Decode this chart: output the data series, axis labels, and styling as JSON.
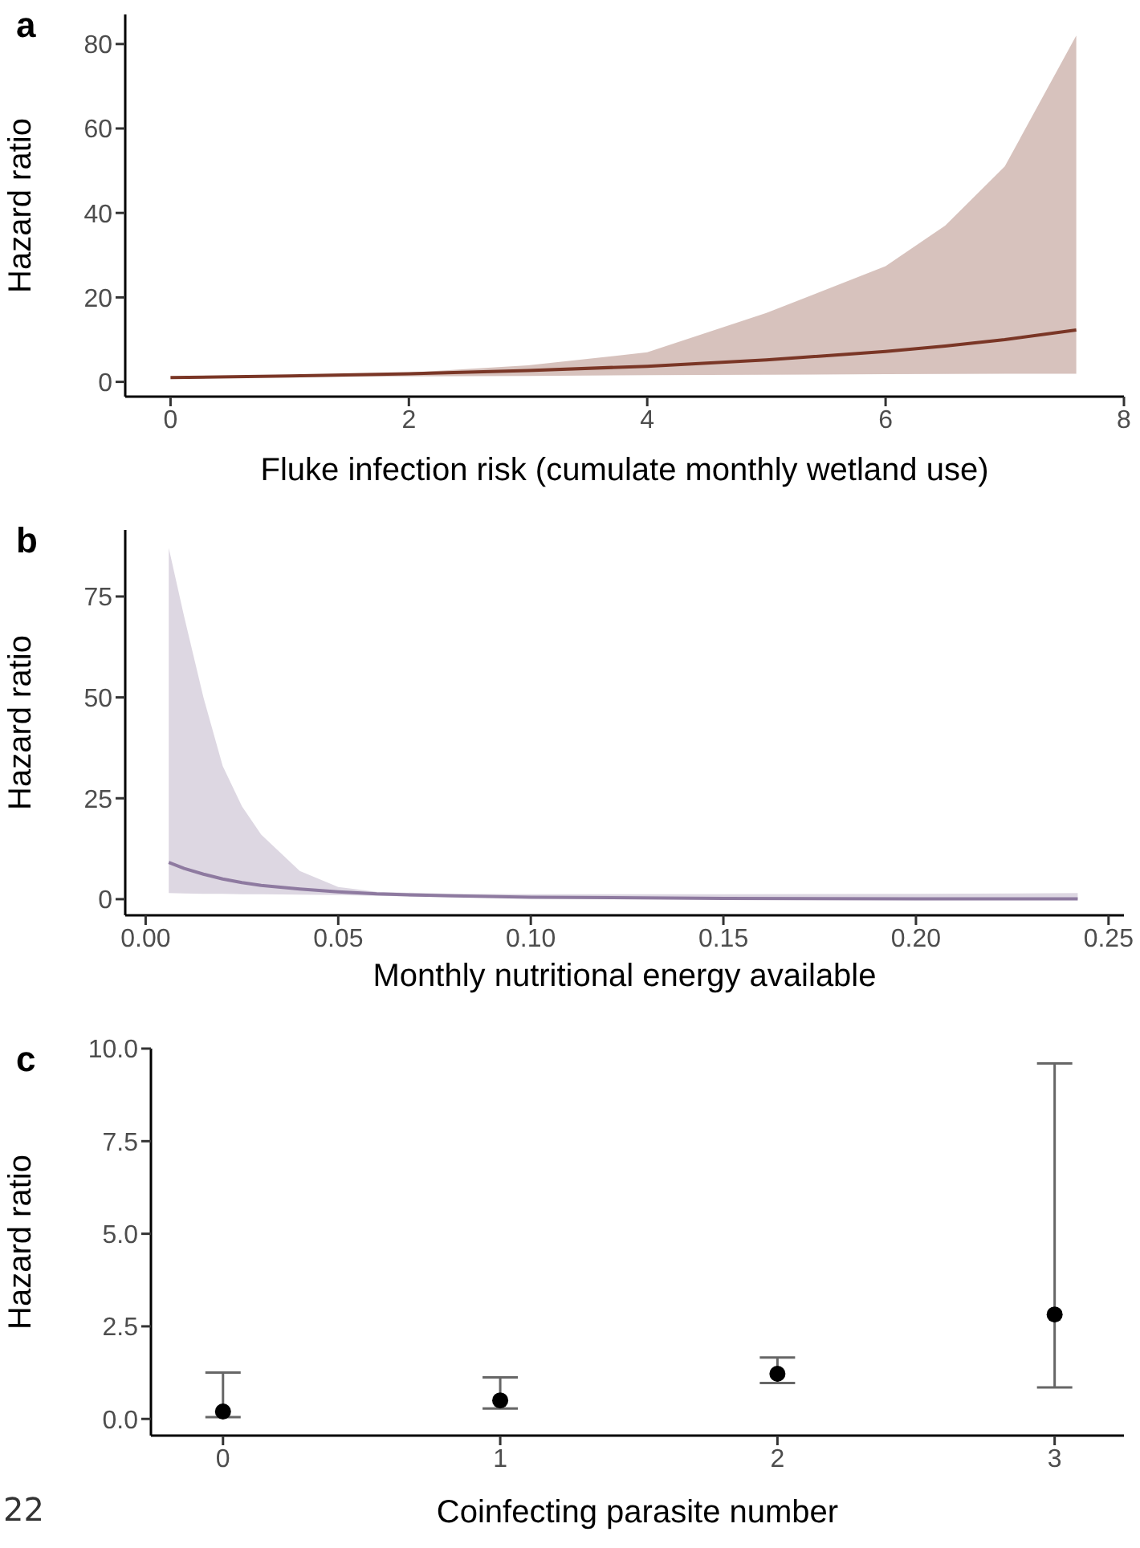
{
  "chart_data": [
    {
      "type": "line",
      "title": "a",
      "xlabel": "Fluke infection risk (cumulate monthly wetland use)",
      "ylabel": "Hazard ratio",
      "xlim": [
        -0.38,
        8
      ],
      "ylim": [
        -3.5,
        87
      ],
      "xticks": [
        0,
        2,
        4,
        6,
        8
      ],
      "yticks": [
        0,
        20,
        40,
        60,
        80
      ],
      "marker": "none",
      "series": [
        {
          "color": "#7a3626",
          "x": [
            0,
            1,
            2,
            3,
            4,
            5,
            6,
            6.5,
            7,
            7.6
          ],
          "values": [
            1,
            1.4,
            1.9,
            2.7,
            3.7,
            5.2,
            7.2,
            8.5,
            10,
            12.3
          ],
          "lower": [
            1,
            1.1,
            1.3,
            1.4,
            1.6,
            1.7,
            1.8,
            1.85,
            1.9,
            1.9
          ],
          "upper": [
            1.1,
            1.3,
            2.2,
            3.9,
            7,
            16.3,
            27.4,
            37,
            51,
            82
          ]
        }
      ]
    },
    {
      "type": "line",
      "title": "b",
      "xlabel": "Monthly nutritional energy available",
      "ylabel": "Hazard ratio",
      "xlim": [
        -0.0053,
        0.254
      ],
      "ylim": [
        -4,
        91.5
      ],
      "xticks": [
        {
          "value": 0,
          "label": "0.00"
        },
        {
          "value": 0.05,
          "label": "0.05"
        },
        {
          "value": 0.1,
          "label": "0.10"
        },
        {
          "value": 0.15,
          "label": "0.15"
        },
        {
          "value": 0.2,
          "label": "0.20"
        },
        {
          "value": 0.25,
          "label": "0.25"
        }
      ],
      "yticks": [
        0,
        25,
        50,
        75
      ],
      "marker": "none",
      "series": [
        {
          "color": "#8e7aa0",
          "x": [
            0.006,
            0.01,
            0.015,
            0.02,
            0.025,
            0.03,
            0.04,
            0.05,
            0.06,
            0.08,
            0.1,
            0.15,
            0.2,
            0.242
          ],
          "values": [
            9.1,
            7.6,
            6.2,
            5.0,
            4.1,
            3.4,
            2.5,
            1.8,
            1.3,
            0.8,
            0.5,
            0.2,
            0.1,
            0.1
          ],
          "lower": [
            1.5,
            1.4,
            1.3,
            1.3,
            1.2,
            1.2,
            1.1,
            1.0,
            0.8,
            0.5,
            0.3,
            0.1,
            0.05,
            0.0
          ],
          "upper": [
            87,
            70,
            50,
            33,
            23,
            16,
            7,
            3,
            1.8,
            1.3,
            1.2,
            1.2,
            1.3,
            1.5
          ]
        }
      ]
    },
    {
      "type": "scatter",
      "title": "c",
      "xlabel": "Coinfecting parasite number",
      "ylabel": "Hazard ratio",
      "categories": [
        "0",
        "1",
        "2",
        "3"
      ],
      "ylim": [
        -0.45,
        10
      ],
      "yticks": [
        {
          "value": 0,
          "label": "0.0"
        },
        {
          "value": 2.5,
          "label": "2.5"
        },
        {
          "value": 5,
          "label": "5.0"
        },
        {
          "value": 7.5,
          "label": "7.5"
        },
        {
          "value": 10,
          "label": "10.0"
        }
      ],
      "marker": "circle",
      "annotations": [
        "22"
      ],
      "series": [
        {
          "color": "#000000",
          "values": [
            0.2,
            0.5,
            1.22,
            2.82
          ],
          "errors": [
            [
              0.05,
              1.25
            ],
            [
              0.28,
              1.12
            ],
            [
              0.97,
              1.66
            ],
            [
              0.85,
              9.6
            ]
          ]
        }
      ]
    }
  ]
}
